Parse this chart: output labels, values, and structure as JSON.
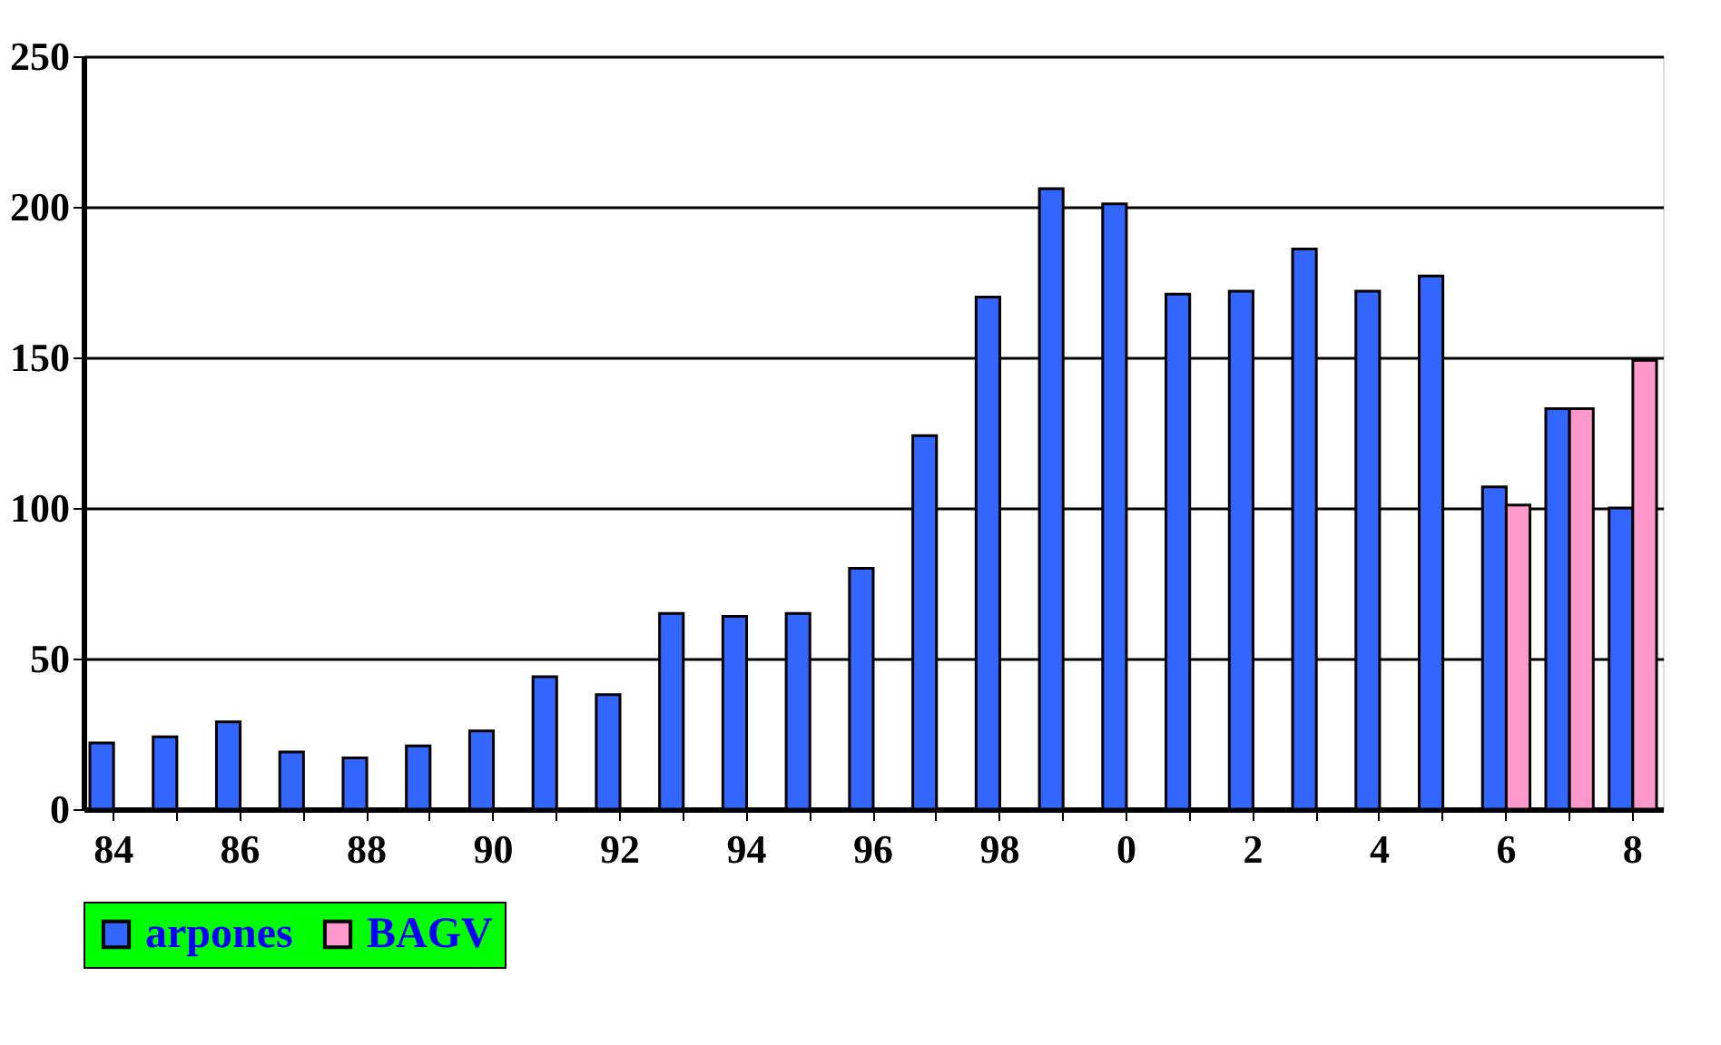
{
  "chart_data": {
    "type": "bar",
    "categories": [
      "84",
      null,
      "86",
      null,
      "88",
      null,
      "90",
      null,
      "92",
      null,
      "94",
      null,
      "96",
      null,
      "98",
      null,
      "0",
      null,
      "2",
      null,
      "4",
      null,
      "6",
      null,
      "8"
    ],
    "series": [
      {
        "name": "arpones",
        "color": "#3366ff",
        "values": [
          22,
          24,
          29,
          19,
          17,
          21,
          26,
          44,
          38,
          65,
          64,
          65,
          80,
          124,
          170,
          206,
          201,
          171,
          172,
          186,
          172,
          177,
          107,
          133,
          100
        ]
      },
      {
        "name": "BAGV",
        "color": "#ff99cc",
        "values": [
          null,
          null,
          null,
          null,
          null,
          null,
          null,
          null,
          null,
          null,
          null,
          null,
          null,
          null,
          null,
          null,
          null,
          null,
          null,
          null,
          null,
          null,
          101,
          133,
          149
        ]
      }
    ],
    "ylim": [
      0,
      250
    ],
    "yticks": [
      0,
      50,
      100,
      150,
      200,
      250
    ],
    "grid": "y",
    "legend": "bottom"
  }
}
